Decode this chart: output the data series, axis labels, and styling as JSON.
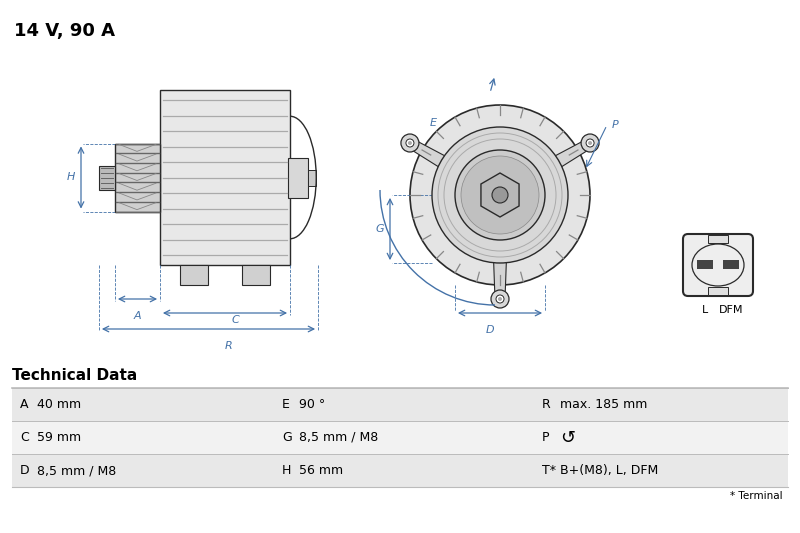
{
  "title": "14 V, 90 A",
  "title_fontsize": 13,
  "bg_color": "#ffffff",
  "tech_data_title": "Technical Data",
  "table_rows": [
    [
      "A",
      "40 mm",
      "E",
      "90 °",
      "R",
      "max. 185 mm"
    ],
    [
      "C",
      "59 mm",
      "G",
      "8,5 mm / M8",
      "P",
      "↺"
    ],
    [
      "D",
      "8,5 mm / M8",
      "H",
      "56 mm",
      "T*",
      "B+(M8), L, DFM"
    ]
  ],
  "footnote": "* Terminal",
  "dim_color": "#4472a8",
  "line_color": "#2a2a2a",
  "gray_bg1": "#e8e8e8",
  "gray_bg2": "#f2f2f2",
  "gray_sep": "#bbbbbb",
  "connector_label_L": "L",
  "connector_label_DFM": "DFM"
}
